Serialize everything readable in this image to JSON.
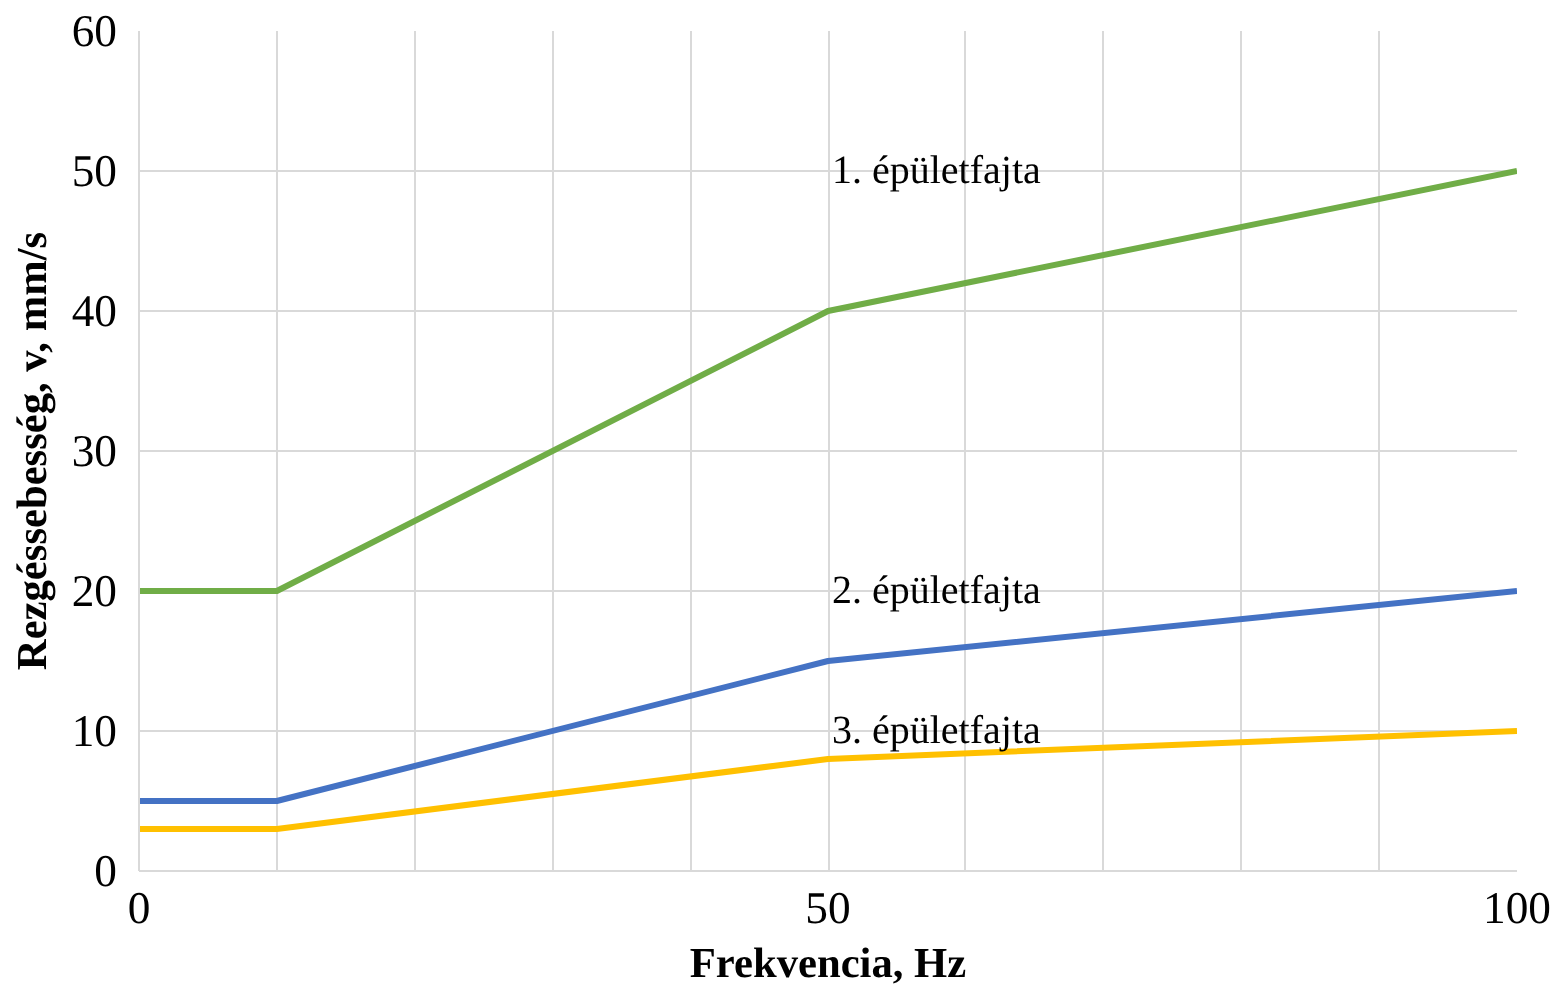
{
  "chart_data": {
    "type": "line",
    "xlabel": "Frekvencia, Hz",
    "ylabel": "Rezgéssebesség, v, mm/s",
    "x": [
      0,
      10,
      50,
      100
    ],
    "series": [
      {
        "name": "1. épületfajta",
        "color": "#70ad47",
        "values": [
          20,
          20,
          40,
          50
        ]
      },
      {
        "name": "2. épületfajta",
        "color": "#4472c4",
        "values": [
          5,
          5,
          15,
          20
        ]
      },
      {
        "name": "3. épületfajta",
        "color": "#ffc000",
        "values": [
          3,
          3,
          8,
          10
        ]
      }
    ],
    "xlim": [
      0,
      100
    ],
    "xticks": [
      0,
      {
        "value": 10,
        "label": null
      },
      {
        "value": 20,
        "label": null
      },
      {
        "value": 30,
        "label": null
      },
      {
        "value": 40,
        "label": null
      },
      50,
      {
        "value": 60,
        "label": null
      },
      {
        "value": 70,
        "label": null
      },
      {
        "value": 80,
        "label": null
      },
      {
        "value": 90,
        "label": null
      },
      100
    ],
    "ylim": [
      0,
      60
    ],
    "yticks": [
      0,
      10,
      20,
      30,
      40,
      50,
      60
    ],
    "grid": true,
    "marker": "none",
    "line_style": "solid"
  }
}
